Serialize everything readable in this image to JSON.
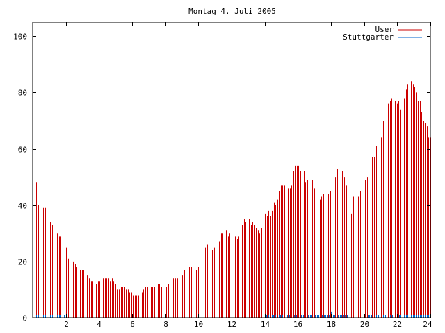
{
  "chart_data": {
    "type": "bar",
    "title": "Montag 4. Juli 2005",
    "xlabel": "",
    "ylabel": "",
    "xlim": [
      0,
      24
    ],
    "ylim": [
      0,
      105
    ],
    "x_ticks": [
      2,
      4,
      6,
      8,
      10,
      12,
      14,
      16,
      18,
      20,
      22,
      24
    ],
    "y_ticks": [
      0,
      20,
      40,
      60,
      80,
      100
    ],
    "legend_position": "top-right",
    "grid": false,
    "series": [
      {
        "name": "User",
        "color": "#cc0000",
        "style": "impulses",
        "sample_interval_hours": 0.0833,
        "values": [
          49,
          49,
          48,
          40,
          40,
          39,
          39,
          39,
          37,
          34,
          34,
          33,
          33,
          30,
          30,
          29,
          29,
          28,
          27,
          25,
          21,
          21,
          21,
          20,
          19,
          18,
          17,
          17,
          17,
          17,
          16,
          15,
          14,
          13,
          13,
          12,
          12,
          13,
          13,
          14,
          14,
          14,
          14,
          14,
          13,
          14,
          13,
          12,
          10,
          10,
          11,
          11,
          11,
          10,
          10,
          9,
          9,
          8,
          8,
          8,
          8,
          8,
          9,
          10,
          11,
          11,
          11,
          11,
          11,
          11,
          12,
          12,
          12,
          11,
          12,
          12,
          11,
          12,
          12,
          13,
          14,
          14,
          14,
          13,
          14,
          15,
          17,
          18,
          18,
          18,
          18,
          18,
          17,
          17,
          18,
          19,
          20,
          20,
          25,
          26,
          26,
          26,
          24,
          25,
          24,
          25,
          27,
          30,
          30,
          29,
          31,
          29,
          30,
          30,
          29,
          29,
          28,
          29,
          30,
          33,
          35,
          34,
          35,
          35,
          33,
          34,
          33,
          32,
          31,
          30,
          32,
          34,
          37,
          36,
          38,
          36,
          38,
          41,
          40,
          42,
          45,
          47,
          47,
          47,
          46,
          46,
          46,
          47,
          52,
          54,
          54,
          54,
          52,
          52,
          52,
          48,
          49,
          47,
          48,
          49,
          46,
          44,
          41,
          42,
          43,
          44,
          44,
          43,
          44,
          45,
          47,
          48,
          50,
          53,
          54,
          52,
          52,
          50,
          47,
          42,
          38,
          37,
          43,
          43,
          43,
          43,
          45,
          51,
          51,
          49,
          50,
          57,
          57,
          57,
          57,
          61,
          62,
          63,
          64,
          70,
          71,
          73,
          76,
          77,
          78,
          77,
          77,
          76,
          77,
          74,
          74,
          78,
          81,
          83,
          85,
          84,
          83,
          82,
          80,
          77,
          77,
          73,
          70,
          69,
          68,
          64,
          64
        ]
      },
      {
        "name": "Stuttgarter",
        "color": "#0066cc",
        "style": "impulses",
        "sample_interval_hours": 0.0833,
        "values": [
          1,
          1,
          1,
          1,
          1,
          1,
          1,
          1,
          1,
          1,
          1,
          1,
          1,
          1,
          1,
          1,
          1,
          1,
          1,
          0,
          0,
          0,
          0,
          0,
          0,
          0,
          0,
          0,
          0,
          0,
          0,
          0,
          0,
          0,
          0,
          0,
          0,
          0,
          0,
          0,
          0,
          0,
          0,
          0,
          0,
          0,
          0,
          0,
          0,
          0,
          0,
          0,
          0,
          0,
          0,
          0,
          0,
          0,
          0,
          0,
          0,
          0,
          0,
          0,
          0,
          0,
          0,
          0,
          0,
          0,
          0,
          0,
          0,
          0,
          0,
          0,
          0,
          0,
          0,
          0,
          0,
          0,
          0,
          0,
          0,
          0,
          0,
          0,
          0,
          0,
          0,
          0,
          0,
          0,
          0,
          0,
          0,
          0,
          0,
          0,
          0,
          0,
          0,
          0,
          0,
          0,
          0,
          0,
          0,
          0,
          0,
          0,
          0,
          0,
          0,
          0,
          0,
          0,
          0,
          0,
          0,
          0,
          0,
          0,
          0,
          0,
          0,
          0,
          0,
          0,
          0,
          0,
          0,
          0,
          1,
          1,
          1,
          1,
          1,
          1,
          1,
          1,
          1,
          1,
          1,
          1,
          1,
          1,
          2,
          1,
          1,
          1,
          1,
          1,
          1,
          1,
          1,
          1,
          1,
          1,
          1,
          1,
          1,
          1,
          1,
          1,
          1,
          1,
          1,
          1,
          1,
          2,
          1,
          1,
          1,
          1,
          1,
          1,
          1,
          1,
          1,
          0,
          0,
          0,
          0,
          0,
          0,
          0,
          0,
          0,
          1,
          1,
          1,
          1,
          1,
          1,
          1,
          1,
          1,
          1,
          1,
          1,
          1,
          1,
          1,
          1,
          1,
          1,
          1,
          1,
          1,
          1,
          1,
          1,
          1,
          1,
          1,
          1,
          1,
          1,
          1,
          1,
          1,
          1,
          1,
          1,
          1,
          1,
          1
        ]
      }
    ]
  }
}
